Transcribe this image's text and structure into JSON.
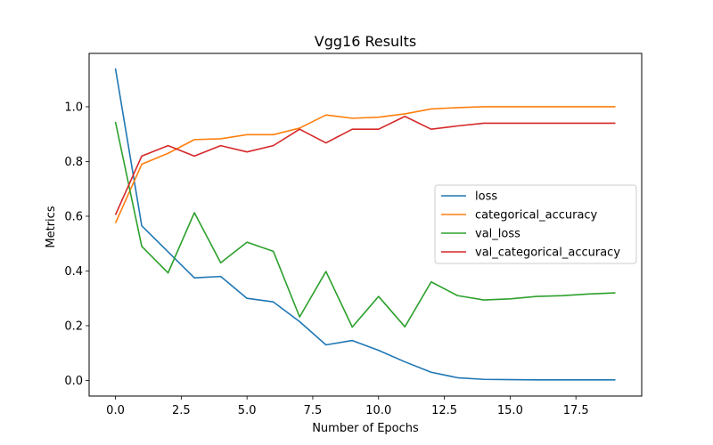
{
  "chart_data": {
    "type": "line",
    "title": "Vgg16 Results",
    "xlabel": "Number of Epochs",
    "ylabel": "Metrics",
    "xlim": [
      -1,
      20
    ],
    "ylim": [
      -0.057,
      1.195
    ],
    "xticks": [
      0.0,
      2.5,
      5.0,
      7.5,
      10.0,
      12.5,
      15.0,
      17.5
    ],
    "xtick_labels": [
      "0.0",
      "2.5",
      "5.0",
      "7.5",
      "10.0",
      "12.5",
      "15.0",
      "17.5"
    ],
    "yticks": [
      0.0,
      0.2,
      0.4,
      0.6,
      0.8,
      1.0
    ],
    "ytick_labels": [
      "0.0",
      "0.2",
      "0.4",
      "0.6",
      "0.8",
      "1.0"
    ],
    "grid": false,
    "legend_position": "center-right",
    "x": [
      0,
      1,
      2,
      3,
      4,
      5,
      6,
      7,
      8,
      9,
      10,
      11,
      12,
      13,
      14,
      15,
      16,
      17,
      18,
      19
    ],
    "series": [
      {
        "name": "loss",
        "color": "#1f77b4",
        "values": [
          1.14,
          0.565,
          0.47,
          0.375,
          0.38,
          0.3,
          0.287,
          0.215,
          0.13,
          0.146,
          0.11,
          0.068,
          0.03,
          0.01,
          0.004,
          0.003,
          0.002,
          0.002,
          0.002,
          0.002
        ]
      },
      {
        "name": "categorical_accuracy",
        "color": "#ff7f0e",
        "values": [
          0.575,
          0.79,
          0.83,
          0.88,
          0.883,
          0.898,
          0.898,
          0.922,
          0.97,
          0.958,
          0.962,
          0.974,
          0.992,
          0.997,
          1.0,
          1.0,
          1.0,
          1.0,
          1.0,
          1.0
        ]
      },
      {
        "name": "val_loss",
        "color": "#2ca02c",
        "values": [
          0.945,
          0.49,
          0.393,
          0.613,
          0.43,
          0.505,
          0.472,
          0.232,
          0.398,
          0.195,
          0.307,
          0.196,
          0.36,
          0.31,
          0.294,
          0.298,
          0.307,
          0.31,
          0.316,
          0.32
        ]
      },
      {
        "name": "val_categorical_accuracy",
        "color": "#d62728",
        "values": [
          0.605,
          0.82,
          0.858,
          0.82,
          0.858,
          0.835,
          0.858,
          0.918,
          0.868,
          0.918,
          0.918,
          0.965,
          0.918,
          0.93,
          0.94,
          0.94,
          0.94,
          0.94,
          0.94,
          0.94
        ]
      }
    ]
  }
}
